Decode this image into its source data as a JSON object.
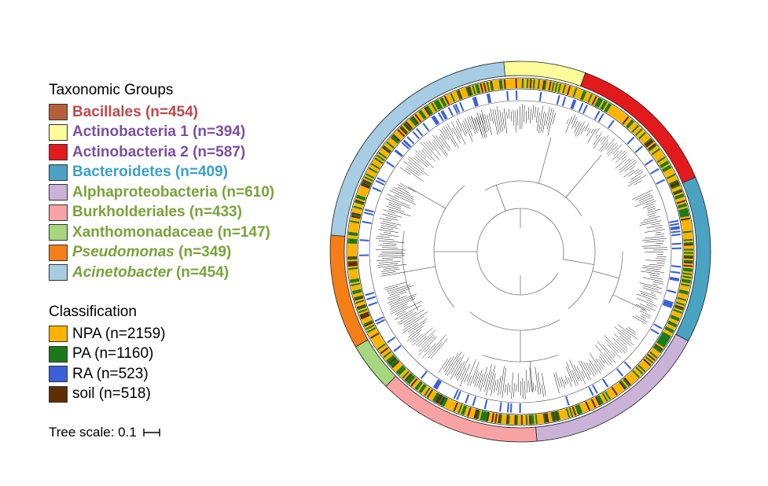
{
  "taxonomic_legend": {
    "title": "Taxonomic Groups",
    "items": [
      {
        "name": "Bacillales",
        "count": "(n=454)",
        "italic": false,
        "swatch": "#b5603a",
        "text_color": "#c0484a"
      },
      {
        "name": "Actinobacteria 1",
        "count": "(n=394)",
        "italic": false,
        "swatch": "#fdfb9a",
        "text_color": "#7b4fa0"
      },
      {
        "name": "Actinobacteria 2",
        "count": "(n=587)",
        "italic": false,
        "swatch": "#e31a1c",
        "text_color": "#7b4fa0"
      },
      {
        "name": "Bacteroidetes",
        "count": "(n=409)",
        "italic": false,
        "swatch": "#4aa3c2",
        "text_color": "#3aa0c8"
      },
      {
        "name": "Alphaproteobacteria",
        "count": "(n=610)",
        "italic": false,
        "swatch": "#cbb2d8",
        "text_color": "#7aa33a"
      },
      {
        "name": "Burkholderiales",
        "count": "(n=433)",
        "italic": false,
        "swatch": "#f7a3a4",
        "text_color": "#7aa33a"
      },
      {
        "name": "Xanthomonadaceae",
        "count": "(n=147)",
        "italic": false,
        "swatch": "#a6d67e",
        "text_color": "#7aa33a"
      },
      {
        "name": "Pseudomonas",
        "count": "(n=349)",
        "italic": true,
        "swatch": "#f57f17",
        "text_color": "#7aa33a"
      },
      {
        "name": "Acinetobacter",
        "count": "(n=454)",
        "italic": true,
        "swatch": "#a6cde4",
        "text_color": "#7aa33a"
      }
    ]
  },
  "classification_legend": {
    "title": "Classification",
    "items": [
      {
        "label": "NPA (n=2159)",
        "swatch": "#ffb300"
      },
      {
        "label": "PA (n=1160)",
        "swatch": "#1a7a1a"
      },
      {
        "label": "RA (n=523)",
        "swatch": "#3a5fd9"
      },
      {
        "label": "soil (n=518)",
        "swatch": "#5c2e00"
      }
    ]
  },
  "tree_scale": {
    "label": "Tree scale: 0.1"
  },
  "outer_ring": [
    {
      "group": "Bacillales",
      "color": "#b5603a"
    },
    {
      "group": "Actinobacteria 1",
      "color": "#fdfb9a"
    },
    {
      "group": "Actinobacteria 2",
      "color": "#e31a1c"
    },
    {
      "group": "Bacteroidetes",
      "color": "#4aa3c2"
    },
    {
      "group": "Alphaproteobacteria",
      "color": "#cbb2d8"
    },
    {
      "group": "Burkholderiales",
      "color": "#f7a3a4"
    },
    {
      "group": "Xanthomonadaceae",
      "color": "#a6d67e"
    },
    {
      "group": "Pseudomonas",
      "color": "#f57f17"
    },
    {
      "group": "Acinetobacter",
      "color": "#a6cde4"
    }
  ]
}
